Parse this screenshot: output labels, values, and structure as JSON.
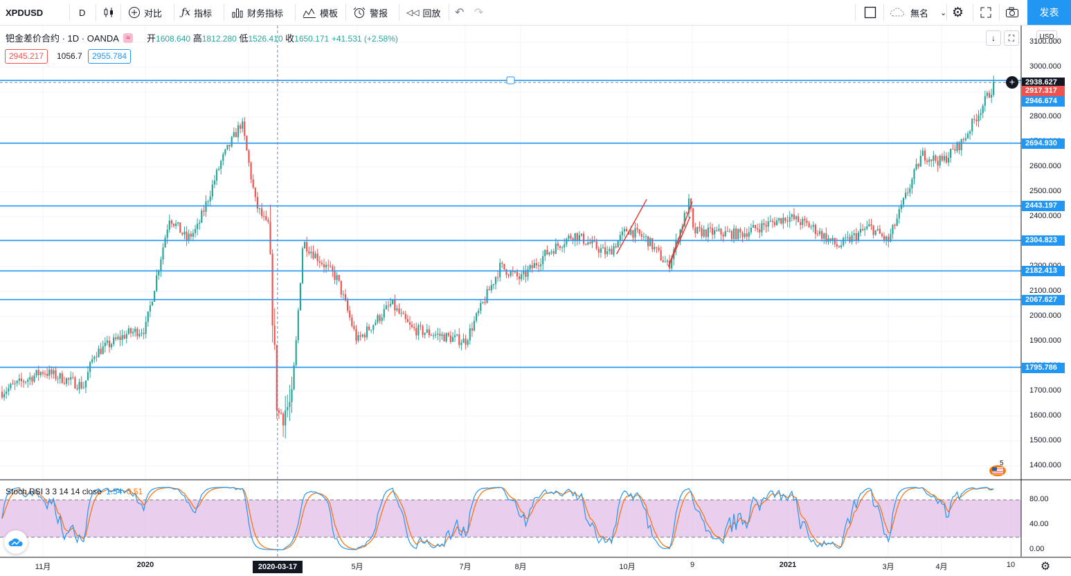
{
  "toolbar": {
    "symbol": "XPDUSD",
    "interval": "D",
    "compare_label": "对比",
    "indicators_label": "指标",
    "financials_label": "财务指标",
    "templates_label": "模板",
    "alert_label": "警报",
    "replay_label": "回放",
    "layout_name": "無名",
    "publish_label": "发表"
  },
  "legend": {
    "title": "钯金差价合约 · 1D · OANDA",
    "open_label": "开",
    "open": "1608.640",
    "high_label": "高",
    "high": "1812.280",
    "low_label": "低",
    "low": "1526.410",
    "close_label": "收",
    "close": "1650.171",
    "change": "+41.531 (+2.58%)",
    "wave_badge": "≈",
    "bid": "2945.217",
    "spread": "1056.7",
    "ask": "2955.784"
  },
  "currency": "USD",
  "price_axis": {
    "ticks": [
      "3100.000",
      "3000.000",
      "2900.000",
      "2800.000",
      "2700.000",
      "2600.000",
      "2500.000",
      "2400.000",
      "2300.000",
      "2200.000",
      "2100.000",
      "2000.000",
      "1900.000",
      "1800.000",
      "1700.000",
      "1600.000",
      "1500.000",
      "1400.000"
    ],
    "tags": [
      {
        "label": "2938.627",
        "color": "#131722"
      },
      {
        "label": "2917.317",
        "color": "#ef5350"
      },
      {
        "label": "2946.674",
        "color": "#2196f3"
      },
      {
        "label": "2694.930",
        "color": "#2196f3"
      },
      {
        "label": "2443.197",
        "color": "#2196f3"
      },
      {
        "label": "2304.823",
        "color": "#2196f3"
      },
      {
        "label": "2182.413",
        "color": "#2196f3"
      },
      {
        "label": "2067.627",
        "color": "#2196f3"
      },
      {
        "label": "1795.786",
        "color": "#2196f3"
      }
    ]
  },
  "horizontal_levels": [
    2946.674,
    2694.93,
    2443.197,
    2304.823,
    2182.413,
    2067.627,
    1795.786
  ],
  "crosshair_price": 2938.627,
  "crosshair_date": "2020-03-17",
  "time_axis": [
    {
      "label": "11月",
      "bold": false
    },
    {
      "label": "2020",
      "bold": true
    },
    {
      "label": "3月",
      "bold": false
    },
    {
      "label": "5月",
      "bold": false
    },
    {
      "label": "7月",
      "bold": false
    },
    {
      "label": "8月",
      "bold": false
    },
    {
      "label": "10月",
      "bold": false
    },
    {
      "label": "9",
      "bold": false
    },
    {
      "label": "2021",
      "bold": true
    },
    {
      "label": "3月",
      "bold": false
    },
    {
      "label": "4月",
      "bold": false
    },
    {
      "label": "10",
      "bold": false
    }
  ],
  "rsi": {
    "label": "Stoch RSI 3 3 14 14 close",
    "k_value": "1.54",
    "d_value": "0.51",
    "k_color": "#2196f3",
    "d_color": "#ff6d00",
    "ticks": [
      "80.00",
      "40.00",
      "0.00"
    ],
    "band": [
      20,
      80
    ]
  },
  "earnings_badge": "5",
  "chart_data": {
    "type": "candlestick",
    "symbol": "XPDUSD",
    "interval": "1D",
    "ylim": [
      1400,
      3100
    ],
    "x_range": [
      "2019-10",
      "2021-05"
    ],
    "anchors": [
      {
        "date": "2019-10",
        "price": 1700
      },
      {
        "date": "2019-11",
        "price": 1780
      },
      {
        "date": "2019-11-25",
        "price": 1720
      },
      {
        "date": "2019-12",
        "price": 1850
      },
      {
        "date": "2019-12-20",
        "price": 1930
      },
      {
        "date": "2020-01",
        "price": 1950
      },
      {
        "date": "2020-01-15",
        "price": 2400
      },
      {
        "date": "2020-01-25",
        "price": 2310
      },
      {
        "date": "2020-02",
        "price": 2350
      },
      {
        "date": "2020-02-15",
        "price": 2620
      },
      {
        "date": "2020-02-27",
        "price": 2780
      },
      {
        "date": "2020-03-05",
        "price": 2450
      },
      {
        "date": "2020-03-12",
        "price": 2350
      },
      {
        "date": "2020-03-17",
        "price": 1600
      },
      {
        "date": "2020-03-25",
        "price": 1650
      },
      {
        "date": "2020-04",
        "price": 2300
      },
      {
        "date": "2020-04-20",
        "price": 2150
      },
      {
        "date": "2020-05",
        "price": 1900
      },
      {
        "date": "2020-05-20",
        "price": 2050
      },
      {
        "date": "2020-06",
        "price": 1950
      },
      {
        "date": "2020-07",
        "price": 1900
      },
      {
        "date": "2020-07-20",
        "price": 2200
      },
      {
        "date": "2020-08",
        "price": 2150
      },
      {
        "date": "2020-08-15",
        "price": 2250
      },
      {
        "date": "2020-09",
        "price": 2330
      },
      {
        "date": "2020-09-20",
        "price": 2250
      },
      {
        "date": "2020-10",
        "price": 2350
      },
      {
        "date": "2020-10-10",
        "price": 2310
      },
      {
        "date": "2020-10-20",
        "price": 2200
      },
      {
        "date": "2020-10-30",
        "price": 2470
      },
      {
        "date": "2020-11",
        "price": 2340
      },
      {
        "date": "2020-12",
        "price": 2330
      },
      {
        "date": "2021-01",
        "price": 2400
      },
      {
        "date": "2021-01-15",
        "price": 2360
      },
      {
        "date": "2021-02",
        "price": 2280
      },
      {
        "date": "2021-02-20",
        "price": 2360
      },
      {
        "date": "2021-03",
        "price": 2300
      },
      {
        "date": "2021-03-20",
        "price": 2650
      },
      {
        "date": "2021-04",
        "price": 2620
      },
      {
        "date": "2021-04-10",
        "price": 2700
      },
      {
        "date": "2021-04-25",
        "price": 2950
      }
    ]
  }
}
